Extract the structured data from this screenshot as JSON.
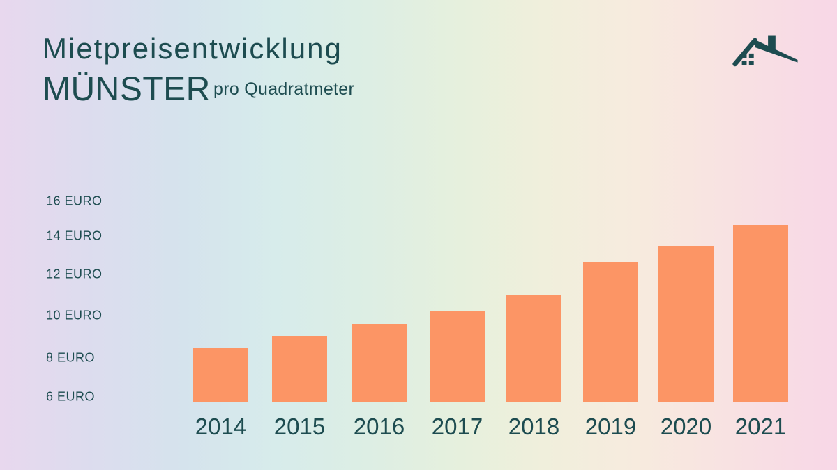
{
  "header": {
    "title_line1": "Mietpreisentwicklung",
    "title_line2": "MÜNSTER",
    "subtitle": "pro Quadratmeter"
  },
  "icon": {
    "name": "house-roof",
    "color": "#1d4c50"
  },
  "colors": {
    "text": "#1d4c50",
    "bar": "#fc9565",
    "background_gradient": [
      "#e8d8ee",
      "#d5e3ed",
      "#d7eceb",
      "#e6f0dd",
      "#f7ebde",
      "#f8d7e7"
    ]
  },
  "chart_data": {
    "type": "bar",
    "title": "Mietpreisentwicklung MÜNSTER",
    "subtitle": "pro Quadratmeter",
    "categories": [
      "2014",
      "2015",
      "2016",
      "2017",
      "2018",
      "2019",
      "2020",
      "2021"
    ],
    "values": [
      8.5,
      9.1,
      9.7,
      10.4,
      11.2,
      12.9,
      13.7,
      14.8
    ],
    "unit": "EURO",
    "y_ticks": [
      {
        "value": 16,
        "label": "16 EURO"
      },
      {
        "value": 14,
        "label": "14 EURO"
      },
      {
        "value": 12,
        "label": "12 EURO"
      },
      {
        "value": 10,
        "label": "10 EURO"
      },
      {
        "value": 8,
        "label": "8 EURO"
      },
      {
        "value": 6,
        "label": "6 EURO"
      }
    ],
    "ylim": [
      6,
      16
    ],
    "grid": false,
    "legend": false,
    "bar_color": "#fc9565",
    "axis_text_color": "#1d4c50"
  }
}
